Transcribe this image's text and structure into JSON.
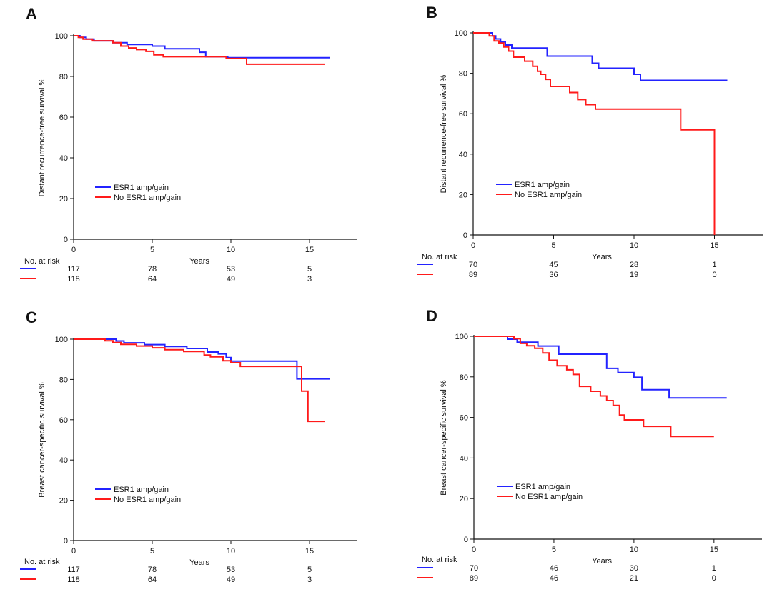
{
  "colors": {
    "esr1": "#2323ff",
    "no_esr1": "#ff1a1a",
    "axis": "#111111"
  },
  "chart_data": [
    {
      "id": "A",
      "type": "line",
      "panel_label": "A",
      "ylabel": "Distant recurrence-free survival %",
      "xlabel": "Years",
      "xlim": [
        0,
        18
      ],
      "ylim": [
        0,
        100
      ],
      "xticks": [
        "0",
        "5",
        "10",
        "15"
      ],
      "yticks": [
        "0",
        "20",
        "40",
        "60",
        "80",
        "100"
      ],
      "legend": [
        "ESR1 amp/gain",
        "No ESR1 amp/gain"
      ],
      "risk_title": "No. at risk",
      "risk": [
        [
          "117",
          "78",
          "53",
          "5"
        ],
        [
          "118",
          "64",
          "49",
          "3"
        ]
      ],
      "series": [
        {
          "name": "ESR1 amp/gain",
          "x": [
            0,
            0.4,
            0.8,
            1.3,
            2.5,
            3.4,
            5.0,
            5.8,
            8.0,
            8.4,
            9.0,
            9.8,
            16.3
          ],
          "y": [
            100,
            99.2,
            98.3,
            97.5,
            96.6,
            95.7,
            94.9,
            93.6,
            91.9,
            89.7,
            89.7,
            89.2,
            89.2
          ]
        },
        {
          "name": "No ESR1 amp/gain",
          "x": [
            0,
            0.3,
            0.6,
            1.2,
            2.5,
            3.0,
            3.5,
            4.0,
            4.6,
            5.1,
            5.7,
            9.7,
            11.0,
            16.0
          ],
          "y": [
            100,
            99.2,
            98.3,
            97.5,
            96.6,
            94.9,
            94.0,
            93.2,
            92.3,
            90.6,
            89.7,
            88.8,
            86.0,
            86.0
          ]
        }
      ]
    },
    {
      "id": "B",
      "type": "line",
      "panel_label": "B",
      "ylabel": "Distant recurrence-free survival %",
      "xlabel": "Years",
      "xlim": [
        0,
        18
      ],
      "ylim": [
        0,
        100
      ],
      "xticks": [
        "0",
        "5",
        "10",
        "15"
      ],
      "yticks": [
        "0",
        "20",
        "40",
        "60",
        "80",
        "100"
      ],
      "legend": [
        "ESR1 amp/gain",
        "No ESR1 amp/gain"
      ],
      "risk_title": "No. at risk",
      "risk": [
        [
          "70",
          "45",
          "28",
          "1"
        ],
        [
          "89",
          "36",
          "19",
          "0"
        ]
      ],
      "series": [
        {
          "name": "ESR1 amp/gain",
          "x": [
            0,
            1.2,
            1.4,
            1.7,
            2.0,
            2.4,
            3.0,
            4.6,
            7.4,
            7.8,
            10.0,
            10.4,
            15.8
          ],
          "y": [
            100,
            98.5,
            97,
            95.5,
            94,
            92.5,
            92.5,
            88.5,
            85,
            82.5,
            79.5,
            76.5,
            76.5
          ]
        },
        {
          "name": "No ESR1 amp/gain",
          "x": [
            0,
            1.0,
            1.3,
            1.6,
            1.9,
            2.2,
            2.5,
            3.2,
            3.7,
            4.0,
            4.2,
            4.5,
            4.8,
            5.3,
            6.0,
            6.5,
            7.0,
            7.6,
            12.9,
            15.0,
            15.0
          ],
          "y": [
            100,
            98.5,
            96,
            95,
            93,
            91,
            88,
            86,
            83.5,
            81,
            79.5,
            77,
            73.5,
            73.5,
            70.5,
            67,
            64.5,
            62.3,
            52,
            52,
            0
          ]
        }
      ]
    },
    {
      "id": "C",
      "type": "line",
      "panel_label": "C",
      "ylabel": "Breast cancer-specific survival %",
      "xlabel": "Years",
      "xlim": [
        0,
        18
      ],
      "ylim": [
        0,
        100
      ],
      "xticks": [
        "0",
        "5",
        "10",
        "15"
      ],
      "yticks": [
        "0",
        "20",
        "40",
        "60",
        "80",
        "100"
      ],
      "legend": [
        "ESR1 amp/gain",
        "No ESR1 amp/gain"
      ],
      "risk_title": "No. at risk",
      "risk": [
        [
          "117",
          "78",
          "53",
          "5"
        ],
        [
          "118",
          "64",
          "49",
          "3"
        ]
      ],
      "series": [
        {
          "name": "ESR1 amp/gain",
          "x": [
            0,
            2.7,
            3.2,
            4.5,
            5.8,
            7.2,
            8.5,
            9.2,
            9.7,
            10.0,
            14.2,
            16.3
          ],
          "y": [
            100,
            99.1,
            98.2,
            97.3,
            96.4,
            95.4,
            93.6,
            92.7,
            90.9,
            89.1,
            80.3,
            80.3
          ]
        },
        {
          "name": "No ESR1 amp/gain",
          "x": [
            0,
            2.0,
            2.5,
            3.0,
            4.0,
            5.0,
            5.8,
            7.0,
            8.3,
            8.7,
            9.5,
            10.0,
            10.6,
            14.3,
            14.5,
            14.9,
            16.0
          ],
          "y": [
            100,
            99.2,
            98.3,
            97.4,
            96.6,
            95.7,
            94.8,
            93.9,
            92.1,
            91.2,
            89.3,
            88.3,
            86.5,
            86.5,
            74.2,
            59.2,
            59.2
          ]
        }
      ]
    },
    {
      "id": "D",
      "type": "line",
      "panel_label": "D",
      "ylabel": "Breast cancer-specific survival %",
      "xlabel": "Years",
      "xlim": [
        0,
        18
      ],
      "ylim": [
        0,
        100
      ],
      "xticks": [
        "0",
        "5",
        "10",
        "15"
      ],
      "yticks": [
        "0",
        "20",
        "40",
        "60",
        "80",
        "100"
      ],
      "legend": [
        "ESR1 amp/gain",
        "No ESR1 amp/gain"
      ],
      "risk_title": "No. at risk",
      "risk": [
        [
          "70",
          "46",
          "30",
          "1"
        ],
        [
          "89",
          "46",
          "21",
          "0"
        ]
      ],
      "series": [
        {
          "name": "ESR1 amp/gain",
          "x": [
            0,
            2.1,
            2.7,
            4.0,
            5.3,
            8.0,
            8.3,
            9.0,
            10.0,
            10.5,
            12.2,
            15.8
          ],
          "y": [
            100,
            98.6,
            97.1,
            95.2,
            91.2,
            91.2,
            84.2,
            82.1,
            79.8,
            73.7,
            69.6,
            69.6
          ]
        },
        {
          "name": "No ESR1 amp/gain",
          "x": [
            0,
            2.5,
            2.9,
            3.3,
            3.8,
            4.3,
            4.7,
            5.2,
            5.8,
            6.2,
            6.6,
            7.3,
            7.9,
            8.3,
            8.7,
            9.1,
            9.4,
            10.6,
            12.3,
            15.0
          ],
          "y": [
            100,
            98.8,
            96.5,
            95.3,
            94.1,
            91.8,
            88.2,
            85.5,
            83.5,
            81.2,
            75.3,
            72.9,
            70.6,
            68.3,
            65.9,
            61.2,
            58.8,
            55.6,
            50.6,
            50.6
          ]
        }
      ]
    }
  ]
}
